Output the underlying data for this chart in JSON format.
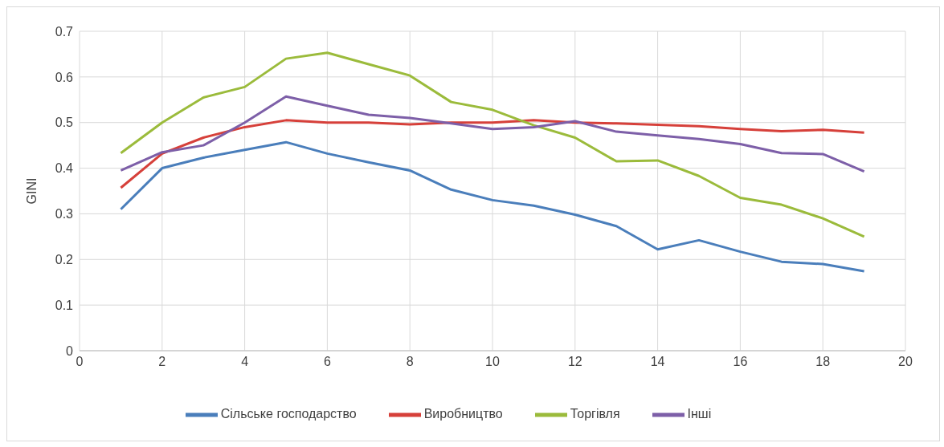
{
  "chart_data": {
    "type": "line",
    "ylabel": "GINI",
    "x": [
      1,
      2,
      3,
      4,
      5,
      6,
      7,
      8,
      9,
      10,
      11,
      12,
      13,
      14,
      15,
      16,
      17,
      18,
      19
    ],
    "series": [
      {
        "name": "Сільське господарство",
        "color": "#4a7ebb",
        "values": [
          0.31,
          0.4,
          0.423,
          0.44,
          0.457,
          0.432,
          0.413,
          0.395,
          0.353,
          0.33,
          0.318,
          0.298,
          0.273,
          0.222,
          0.242,
          0.217,
          0.195,
          0.19,
          0.174
        ]
      },
      {
        "name": "Виробництво",
        "color": "#d6403a",
        "values": [
          0.357,
          0.432,
          0.467,
          0.49,
          0.505,
          0.5,
          0.5,
          0.496,
          0.5,
          0.5,
          0.505,
          0.5,
          0.498,
          0.495,
          0.492,
          0.486,
          0.481,
          0.484,
          0.478
        ]
      },
      {
        "name": "Торгівля",
        "color": "#9bbb3b",
        "values": [
          0.433,
          0.5,
          0.555,
          0.578,
          0.64,
          0.653,
          0.628,
          0.603,
          0.545,
          0.528,
          0.494,
          0.467,
          0.415,
          0.417,
          0.383,
          0.335,
          0.32,
          0.29,
          0.25
        ]
      },
      {
        "name": "Інші",
        "color": "#7d5fa8",
        "values": [
          0.395,
          0.435,
          0.45,
          0.5,
          0.557,
          0.537,
          0.517,
          0.51,
          0.498,
          0.486,
          0.49,
          0.503,
          0.48,
          0.472,
          0.464,
          0.453,
          0.433,
          0.431,
          0.393
        ]
      }
    ],
    "xlim": [
      0,
      20
    ],
    "xticks": [
      0,
      2,
      4,
      6,
      8,
      10,
      12,
      14,
      16,
      18,
      20
    ],
    "ylim": [
      0,
      0.7
    ],
    "yticks": [
      0,
      0.1,
      0.2,
      0.3,
      0.4,
      0.5,
      0.6,
      0.7
    ],
    "grid": true,
    "legend": "bottom",
    "marker": "none",
    "line_style": "solid"
  }
}
